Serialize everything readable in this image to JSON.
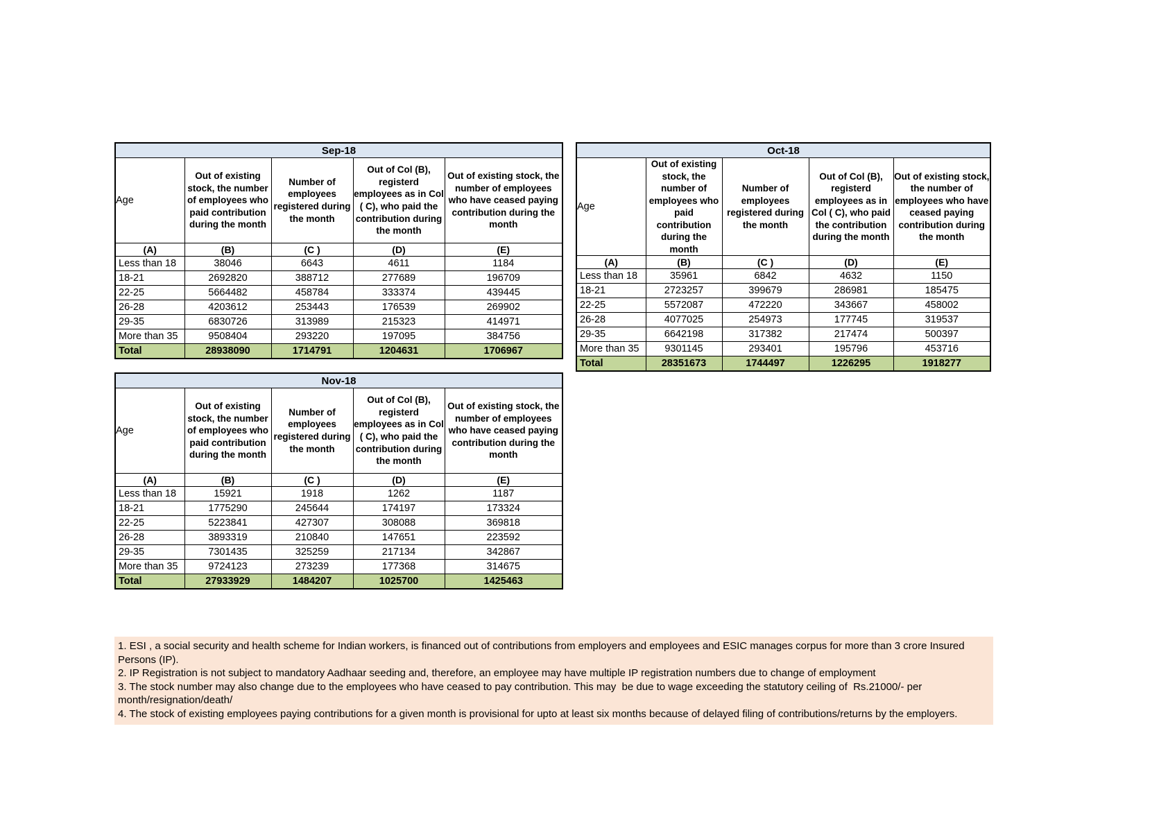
{
  "colors": {
    "title_bg": "#DBE5F1",
    "total_bg": "#C3D69B",
    "note_bg": "#FBE5D6",
    "border": "#000000"
  },
  "tables": [
    {
      "title": "Sep-18",
      "age_header": "Age",
      "columns": [
        "Out of existing stock, the number of employees who paid contribution during the month",
        "Number of employees registered during the month",
        "Out of Col (B), registerd employees as in Col ( C), who paid the contribution during the month",
        "Out of existing stock, the number of  employees  who have ceased paying contribution during the month"
      ],
      "letters": [
        "(A)",
        "(B)",
        "(C )",
        "(D)",
        "(E)"
      ],
      "rows": [
        [
          "Less than 18",
          "38046",
          "6643",
          "4611",
          "1184"
        ],
        [
          "18-21",
          "2692820",
          "388712",
          "277689",
          "196709"
        ],
        [
          "22-25",
          "5664482",
          "458784",
          "333374",
          "439445"
        ],
        [
          "26-28",
          "4203612",
          "253443",
          "176539",
          "269902"
        ],
        [
          "29-35",
          "6830726",
          "313989",
          "215323",
          "414971"
        ],
        [
          "More than 35",
          "9508404",
          "293220",
          "197095",
          "384756"
        ]
      ],
      "total": [
        "Total",
        "28938090",
        "1714791",
        "1204631",
        "1706967"
      ]
    },
    {
      "title": "Oct-18",
      "age_header": "Age",
      "columns": [
        "Out of existing stock, the number of employees who paid contribution during the month",
        "Number of employees registered during the month",
        "Out of Col (B), registerd employees as in Col ( C), who paid the contribution during the month",
        "Out of existing stock, the number of  employees  who have ceased paying contribution during the month"
      ],
      "letters": [
        "(A)",
        "(B)",
        "(C )",
        "(D)",
        "(E)"
      ],
      "rows": [
        [
          "Less than 18",
          "35961",
          "6842",
          "4632",
          "1150"
        ],
        [
          "18-21",
          "2723257",
          "399679",
          "286981",
          "185475"
        ],
        [
          "22-25",
          "5572087",
          "472220",
          "343667",
          "458002"
        ],
        [
          "26-28",
          "4077025",
          "254973",
          "177745",
          "319537"
        ],
        [
          "29-35",
          "6642198",
          "317382",
          "217474",
          "500397"
        ],
        [
          "More than 35",
          "9301145",
          "293401",
          "195796",
          "453716"
        ]
      ],
      "total": [
        "Total",
        "28351673",
        "1744497",
        "1226295",
        "1918277"
      ]
    },
    {
      "title": "Nov-18",
      "age_header": "Age",
      "columns": [
        "Out of existing stock, the number of employees who paid contribution during the month",
        "Number of employees registered during the month",
        "Out of Col (B), registerd employees as in Col ( C), who paid the contribution during the month",
        "Out of existing stock, the number of  employees  who have ceased paying contribution during the month"
      ],
      "letters": [
        "(A)",
        "(B)",
        "(C )",
        "(D)",
        "(E)"
      ],
      "rows": [
        [
          "Less than 18",
          "15921",
          "1918",
          "1262",
          "1187"
        ],
        [
          "18-21",
          "1775290",
          "245644",
          "174197",
          "173324"
        ],
        [
          "22-25",
          "5223841",
          "427307",
          "308088",
          "369818"
        ],
        [
          "26-28",
          "3893319",
          "210840",
          "147651",
          "223592"
        ],
        [
          "29-35",
          "7301435",
          "325259",
          "217134",
          "342867"
        ],
        [
          "More than 35",
          "9724123",
          "273239",
          "177368",
          "314675"
        ]
      ],
      "total": [
        "Total",
        "27933929",
        "1484207",
        "1025700",
        "1425463"
      ]
    }
  ],
  "notes": [
    "1. ESI , a social security and health scheme for Indian workers, is financed out of contributions from employers and employees and ESIC manages corpus for more than 3 crore Insured Persons (IP).",
    "2. IP Registration is not subject to mandatory Aadhaar seeding and, therefore, an employee may have multiple IP registration numbers due to change of employment",
    "3. The stock number may also change due to the employees who have ceased to pay contribution. This may  be due to wage exceeding the statutory ceiling of  Rs.21000/- per month/resignation/death/",
    "4. The stock of existing employees paying contributions for a given month is provisional for upto at least six months because of delayed filing of contributions/returns by the employers."
  ]
}
